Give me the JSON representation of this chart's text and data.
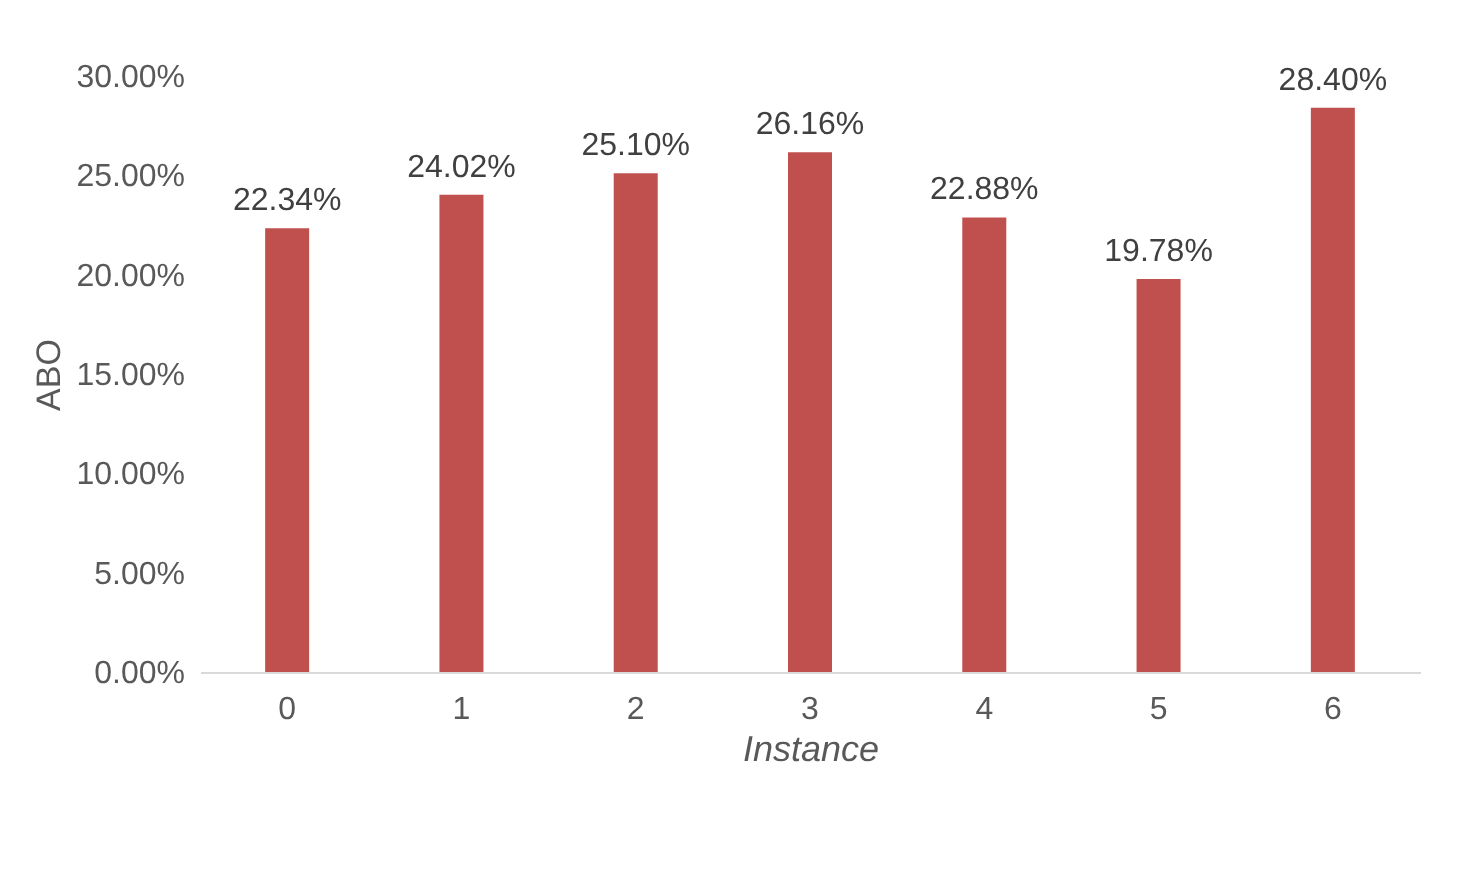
{
  "chart_data": {
    "type": "bar",
    "xlabel": "Instance",
    "ylabel": "ABO",
    "categories": [
      "0",
      "1",
      "2",
      "3",
      "4",
      "5",
      "6"
    ],
    "values": [
      22.34,
      24.02,
      25.1,
      26.16,
      22.88,
      19.78,
      28.4
    ],
    "value_labels": [
      "22.34%",
      "24.02%",
      "25.10%",
      "26.16%",
      "22.88%",
      "19.78%",
      "28.40%"
    ],
    "color": "#c0504d",
    "ylim": [
      0,
      30
    ],
    "yticks": [
      {
        "value": 0,
        "label": "0.00%"
      },
      {
        "value": 5,
        "label": "5.00%"
      },
      {
        "value": 10,
        "label": "10.00%"
      },
      {
        "value": 15,
        "label": "15.00%"
      },
      {
        "value": 20,
        "label": "20.00%"
      },
      {
        "value": 25,
        "label": "25.00%"
      },
      {
        "value": 30,
        "label": "30.00%"
      }
    ],
    "grid": false
  }
}
